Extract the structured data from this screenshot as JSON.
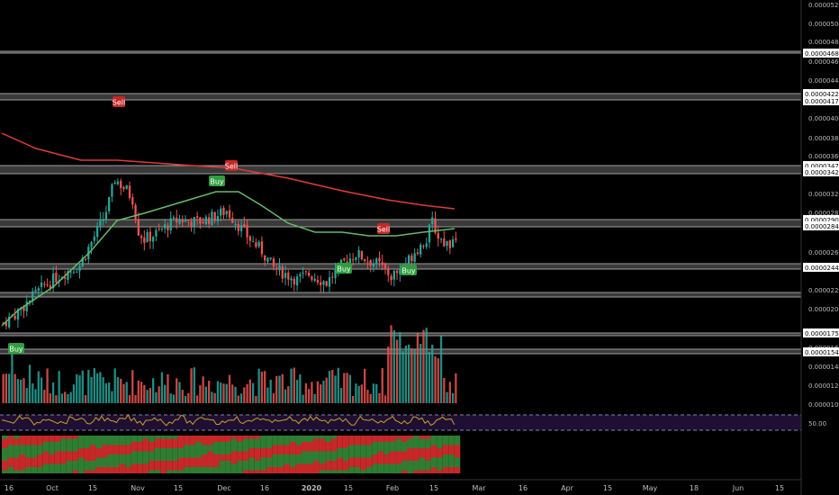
{
  "colors": {
    "background": "#000000",
    "up": "#26a69a",
    "down": "#ef5350",
    "ma_long": "#e53935",
    "ma_short": "#66bb6a",
    "level_line": "#9e9e9e",
    "label_box": "#ffffff",
    "buy": "#2e9e3e",
    "sell": "#c62828",
    "rsi_line": "#c9a227",
    "rsi_band": "#1f0f33",
    "axis_text": "#bdbdbd"
  },
  "chart_data": {
    "type": "candlestick",
    "price_axis": {
      "ticks": [
        "0.00005200",
        "0.00005000",
        "0.00004800",
        "0.00004600",
        "0.00004400",
        "0.00004000",
        "0.00003800",
        "0.00003600",
        "0.00003200",
        "0.00002800",
        "0.00002600",
        "0.00002200",
        "0.00002000",
        "0.00001600",
        "0.00001400",
        "0.00001200",
        "0.00001000"
      ]
    },
    "level_labels": [
      {
        "label": "0.00004685",
        "price": 4.685e-05
      },
      {
        "label": "0.00004226",
        "price": 4.226e-05
      },
      {
        "label": "0.00004174",
        "price": 4.174e-05
      },
      {
        "label": "0.00003477",
        "price": 3.477e-05
      },
      {
        "label": "0.00003426",
        "price": 3.426e-05
      },
      {
        "label": "0.00002909",
        "price": 2.909e-05
      },
      {
        "label": "0.00002844",
        "price": 2.844e-05
      },
      {
        "label": "0.00002441",
        "price": 2.441e-05
      },
      {
        "label": "0.00001750",
        "price": 1.75e-05
      },
      {
        "label": "0.00001549",
        "price": 1.549e-05
      }
    ],
    "time_axis": [
      "16",
      "Oct",
      "15",
      "Nov",
      "15",
      "Dec",
      "16",
      "2020",
      "15",
      "Feb",
      "15",
      "Mar",
      "16",
      "Apr",
      "15",
      "May",
      "18",
      "Jun",
      "15"
    ],
    "signals": [
      {
        "label": "Buy",
        "date": "Sep 16",
        "price": 1.52e-05
      },
      {
        "label": "Sell",
        "date": "Oct 22",
        "price": 4.25e-05
      },
      {
        "label": "Buy",
        "date": "Nov 30",
        "price": 3.38e-05
      },
      {
        "label": "Sell",
        "date": "Dec 5",
        "price": 3.55e-05
      },
      {
        "label": "Buy",
        "date": "Jan 12",
        "price": 2.32e-05
      },
      {
        "label": "Sell",
        "date": "Jan 27",
        "price": 2.9e-05
      },
      {
        "label": "Buy",
        "date": "Feb 5",
        "price": 2.3e-05
      }
    ],
    "rsi": {
      "label": "50.00"
    }
  }
}
